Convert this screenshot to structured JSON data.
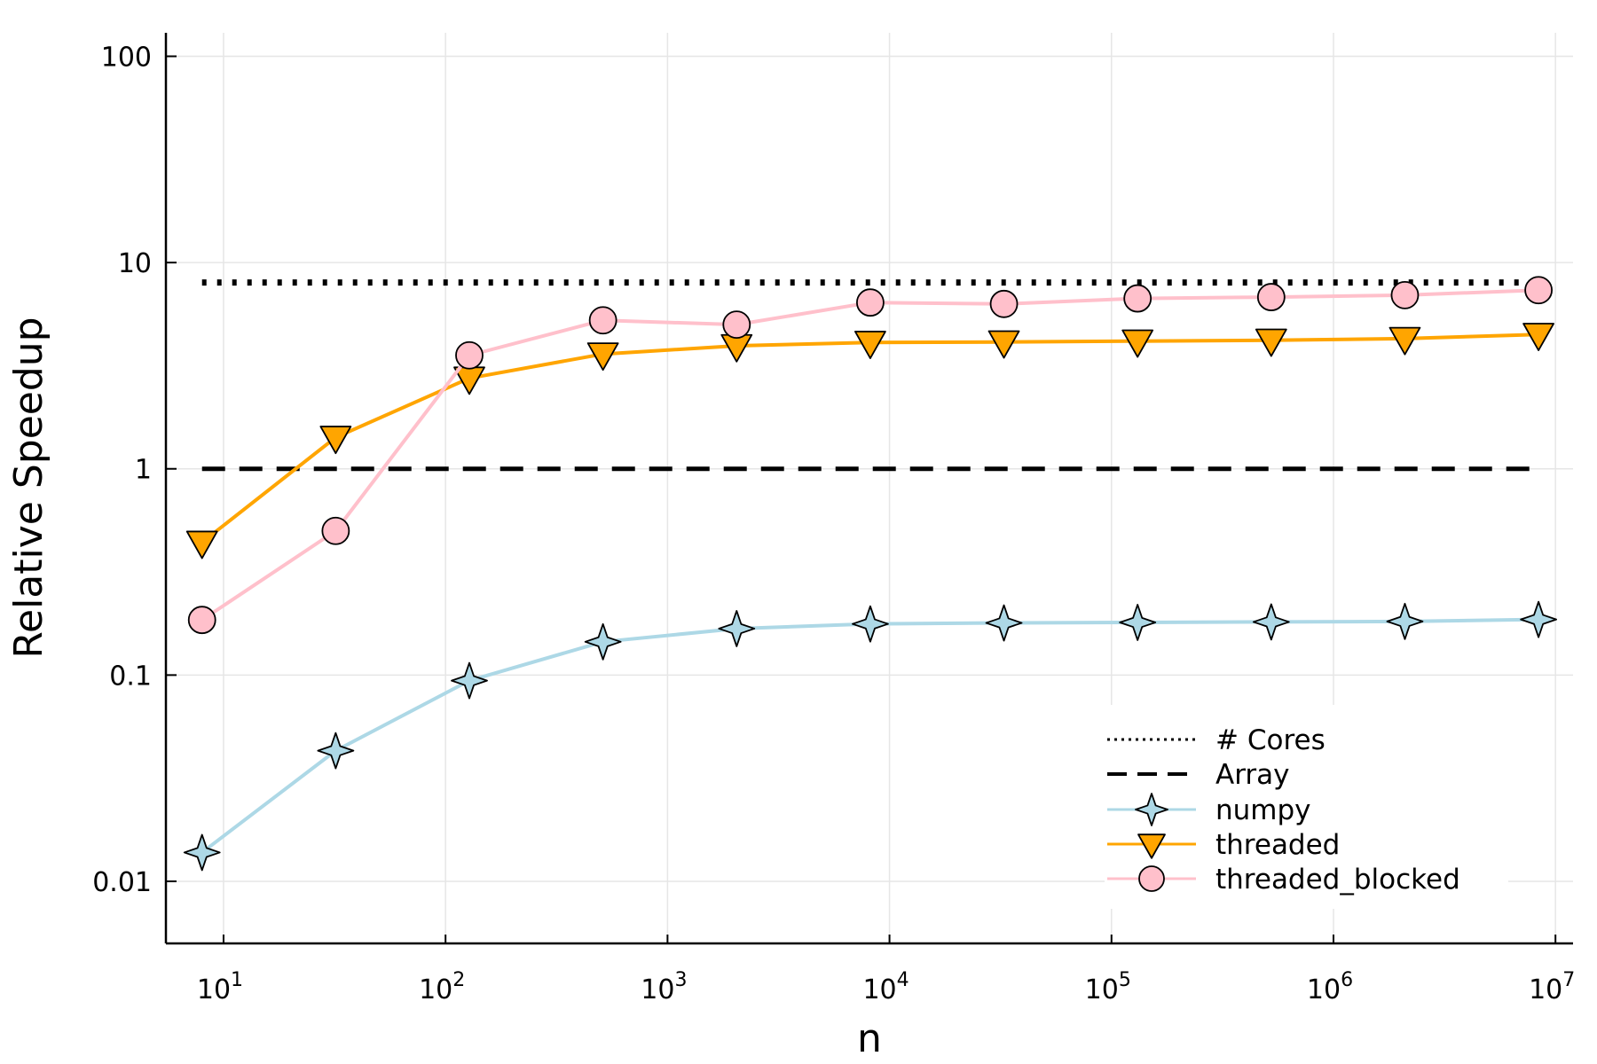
{
  "chart_data": {
    "type": "line",
    "xlabel": "n",
    "ylabel": "Relative Speedup",
    "xscale": "log",
    "yscale": "log",
    "xlim": [
      5.5,
      12000000
    ],
    "ylim": [
      0.005,
      130
    ],
    "grid": true,
    "legend_position": "bottom-right",
    "x_ticks": [
      {
        "value": 10,
        "base": "10",
        "exp": "1"
      },
      {
        "value": 100,
        "base": "10",
        "exp": "2"
      },
      {
        "value": 1000,
        "base": "10",
        "exp": "3"
      },
      {
        "value": 10000,
        "base": "10",
        "exp": "4"
      },
      {
        "value": 100000,
        "base": "10",
        "exp": "5"
      },
      {
        "value": 1000000,
        "base": "10",
        "exp": "6"
      },
      {
        "value": 10000000,
        "base": "10",
        "exp": "7"
      }
    ],
    "y_ticks": [
      {
        "value": 0.01,
        "label": "0.01"
      },
      {
        "value": 0.1,
        "label": "0.1"
      },
      {
        "value": 1,
        "label": "1"
      },
      {
        "value": 10,
        "label": "10"
      },
      {
        "value": 100,
        "label": "100"
      }
    ],
    "x": [
      8,
      32,
      128,
      512,
      2048,
      8192,
      32768,
      131072,
      524288,
      2097152,
      8388608
    ],
    "series": [
      {
        "name": "# Cores",
        "style": "dotted",
        "color": "#000000",
        "marker": "none",
        "values": [
          8,
          8,
          8,
          8,
          8,
          8,
          8,
          8,
          8,
          8,
          8
        ]
      },
      {
        "name": "Array",
        "style": "dashed",
        "color": "#000000",
        "marker": "none",
        "values": [
          1,
          1,
          1,
          1,
          1,
          1,
          1,
          1,
          1,
          1,
          1
        ]
      },
      {
        "name": "numpy",
        "style": "solid",
        "color": "#add8e6",
        "marker": "star4",
        "values": [
          0.0138,
          0.043,
          0.094,
          0.145,
          0.168,
          0.177,
          0.179,
          0.18,
          0.181,
          0.182,
          0.186
        ]
      },
      {
        "name": "threaded",
        "style": "solid",
        "color": "#ffa500",
        "marker": "triangle-down",
        "values": [
          0.44,
          1.42,
          2.75,
          3.6,
          3.95,
          4.1,
          4.12,
          4.16,
          4.2,
          4.28,
          4.48
        ]
      },
      {
        "name": "threaded_blocked",
        "style": "solid",
        "color": "#ffc0cb",
        "marker": "circle",
        "values": [
          0.185,
          0.5,
          3.55,
          5.25,
          5.0,
          6.4,
          6.3,
          6.7,
          6.8,
          6.95,
          7.35
        ]
      }
    ]
  }
}
